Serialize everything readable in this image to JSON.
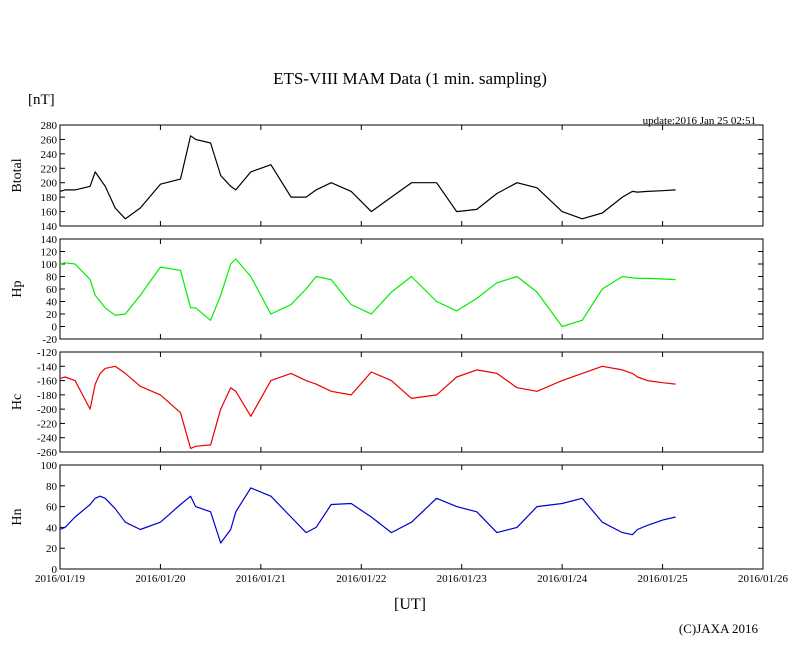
{
  "header": {
    "title": "ETS-VIII MAM Data (1 min. sampling)",
    "unit": "[nT]",
    "update": "update:2016 Jan 25 02:51"
  },
  "footer": {
    "xlabel": "[UT]",
    "copyright": "(C)JAXA 2016"
  },
  "chart_data": {
    "type": "line",
    "x_ticks": [
      "2016/01/19",
      "2016/01/20",
      "2016/01/21",
      "2016/01/22",
      "2016/01/23",
      "2016/01/24",
      "2016/01/25",
      "2016/01/26"
    ],
    "x_range_days": [
      0,
      7
    ],
    "x_tick_days": [
      0,
      1,
      2,
      3,
      4,
      5,
      6,
      7
    ],
    "x": [
      0.0,
      0.05,
      0.15,
      0.3,
      0.35,
      0.4,
      0.45,
      0.55,
      0.65,
      0.8,
      1.0,
      1.2,
      1.3,
      1.35,
      1.5,
      1.6,
      1.7,
      1.75,
      1.9,
      2.1,
      2.3,
      2.45,
      2.55,
      2.7,
      2.9,
      3.1,
      3.3,
      3.5,
      3.75,
      3.95,
      4.15,
      4.35,
      4.55,
      4.75,
      5.0,
      5.2,
      5.4,
      5.6,
      5.7,
      5.75,
      5.85,
      6.0,
      6.13
    ],
    "series": [
      {
        "name": "Btotal",
        "color": "#000000",
        "ylim": [
          140,
          280
        ],
        "y_ticks": [
          140,
          160,
          180,
          200,
          220,
          240,
          260,
          280
        ],
        "values": [
          188,
          190,
          190,
          195,
          215,
          205,
          195,
          165,
          150,
          165,
          198,
          205,
          265,
          260,
          255,
          210,
          195,
          190,
          215,
          225,
          180,
          180,
          190,
          200,
          188,
          160,
          180,
          200,
          200,
          160,
          163,
          185,
          200,
          193,
          160,
          150,
          158,
          180,
          188,
          187,
          188,
          189,
          190
        ]
      },
      {
        "name": "Hp",
        "color": "#00ee00",
        "ylim": [
          -20,
          140
        ],
        "y_ticks": [
          -20,
          0,
          20,
          40,
          60,
          80,
          100,
          120,
          140
        ],
        "values": [
          100,
          102,
          100,
          75,
          50,
          40,
          30,
          18,
          20,
          50,
          95,
          90,
          30,
          30,
          10,
          50,
          100,
          108,
          80,
          20,
          35,
          60,
          80,
          75,
          35,
          20,
          55,
          80,
          40,
          25,
          45,
          70,
          80,
          55,
          0,
          10,
          60,
          80,
          78,
          77,
          77,
          76,
          75
        ]
      },
      {
        "name": "Hc",
        "color": "#ee0000",
        "ylim": [
          -260,
          -120
        ],
        "y_ticks": [
          -260,
          -240,
          -220,
          -200,
          -180,
          -160,
          -140,
          -120
        ],
        "values": [
          -157,
          -155,
          -160,
          -200,
          -165,
          -150,
          -143,
          -140,
          -150,
          -168,
          -180,
          -205,
          -255,
          -252,
          -250,
          -200,
          -170,
          -175,
          -210,
          -160,
          -150,
          -160,
          -165,
          -175,
          -180,
          -148,
          -160,
          -185,
          -180,
          -155,
          -145,
          -150,
          -170,
          -175,
          -160,
          -150,
          -140,
          -145,
          -150,
          -155,
          -160,
          -163,
          -165
        ]
      },
      {
        "name": "Hn",
        "color": "#0000cc",
        "ylim": [
          0,
          100
        ],
        "y_ticks": [
          0,
          20,
          40,
          60,
          80,
          100
        ],
        "values": [
          38,
          40,
          50,
          62,
          68,
          70,
          68,
          58,
          45,
          38,
          45,
          62,
          70,
          60,
          55,
          25,
          38,
          55,
          78,
          70,
          50,
          35,
          40,
          62,
          63,
          50,
          35,
          45,
          68,
          60,
          55,
          35,
          40,
          60,
          63,
          68,
          45,
          35,
          33,
          38,
          42,
          47,
          50
        ]
      }
    ]
  }
}
